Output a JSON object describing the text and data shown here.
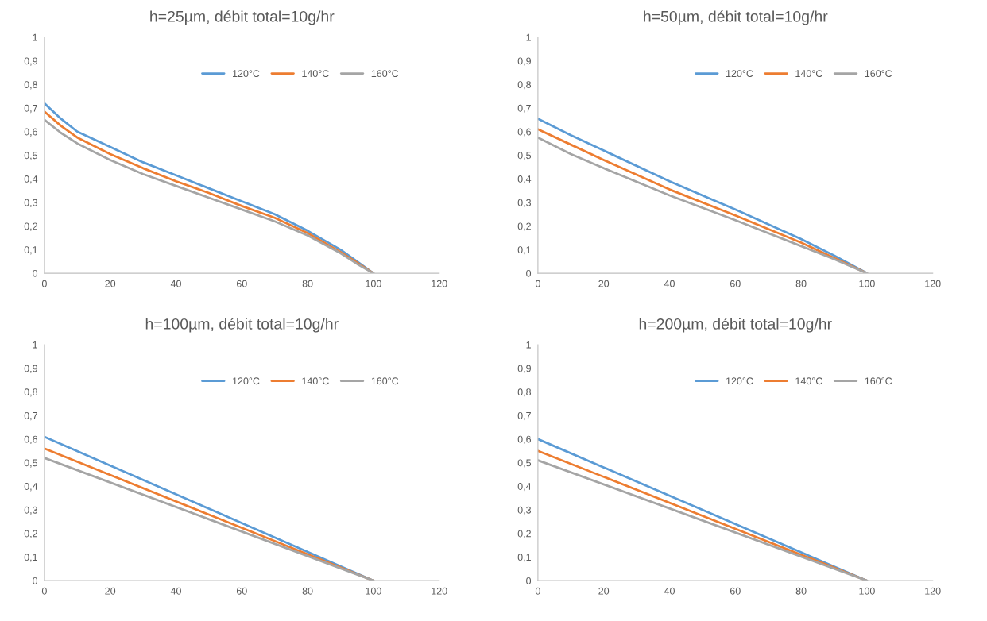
{
  "chart_data": [
    {
      "type": "line",
      "title": "h=25µm, débit total=10g/hr",
      "x": [
        0,
        5,
        10,
        20,
        30,
        40,
        50,
        60,
        70,
        80,
        90,
        95,
        100
      ],
      "xlim": [
        0,
        120
      ],
      "xticks": [
        0,
        20,
        40,
        60,
        80,
        100,
        120
      ],
      "ylim": [
        0,
        1
      ],
      "yticks": [
        0,
        {
          "value": 0.1,
          "label": "0,1"
        },
        {
          "value": 0.2,
          "label": "0,2"
        },
        {
          "value": 0.3,
          "label": "0,3"
        },
        {
          "value": 0.4,
          "label": "0,4"
        },
        {
          "value": 0.5,
          "label": "0,5"
        },
        {
          "value": 0.6,
          "label": "0,6"
        },
        {
          "value": 0.7,
          "label": "0,7"
        },
        {
          "value": 0.8,
          "label": "0,8"
        },
        {
          "value": 0.9,
          "label": "0,9"
        },
        1
      ],
      "grid": false,
      "legend": "top right",
      "marker": "none",
      "line_style": "solid",
      "series": [
        {
          "name": "120°C",
          "color": "#5b9bd5",
          "values": [
            0.72,
            0.655,
            0.6,
            0.535,
            0.47,
            0.415,
            0.36,
            0.305,
            0.25,
            0.18,
            0.1,
            0.05,
            0
          ]
        },
        {
          "name": "140°C",
          "color": "#ed7d31",
          "values": [
            0.685,
            0.625,
            0.575,
            0.505,
            0.445,
            0.39,
            0.34,
            0.285,
            0.235,
            0.17,
            0.09,
            0.045,
            0
          ]
        },
        {
          "name": "160°C",
          "color": "#a5a5a5",
          "values": [
            0.65,
            0.595,
            0.55,
            0.48,
            0.42,
            0.37,
            0.32,
            0.27,
            0.22,
            0.16,
            0.085,
            0.04,
            0
          ]
        }
      ]
    },
    {
      "type": "line",
      "title": "h=50µm, débit total=10g/hr",
      "x": [
        0,
        10,
        20,
        40,
        60,
        80,
        90,
        100
      ],
      "xlim": [
        0,
        120
      ],
      "xticks": [
        0,
        20,
        40,
        60,
        80,
        100,
        120
      ],
      "ylim": [
        0,
        1
      ],
      "yticks": [
        0,
        {
          "value": 0.1,
          "label": "0,1"
        },
        {
          "value": 0.2,
          "label": "0,2"
        },
        {
          "value": 0.3,
          "label": "0,3"
        },
        {
          "value": 0.4,
          "label": "0,4"
        },
        {
          "value": 0.5,
          "label": "0,5"
        },
        {
          "value": 0.6,
          "label": "0,6"
        },
        {
          "value": 0.7,
          "label": "0,7"
        },
        {
          "value": 0.8,
          "label": "0,8"
        },
        {
          "value": 0.9,
          "label": "0,9"
        },
        1
      ],
      "grid": false,
      "legend": "top right",
      "marker": "none",
      "line_style": "solid",
      "series": [
        {
          "name": "120°C",
          "color": "#5b9bd5",
          "values": [
            0.655,
            0.585,
            0.52,
            0.39,
            0.27,
            0.145,
            0.075,
            0
          ]
        },
        {
          "name": "140°C",
          "color": "#ed7d31",
          "values": [
            0.61,
            0.545,
            0.48,
            0.355,
            0.245,
            0.13,
            0.065,
            0
          ]
        },
        {
          "name": "160°C",
          "color": "#a5a5a5",
          "values": [
            0.575,
            0.505,
            0.445,
            0.33,
            0.225,
            0.115,
            0.06,
            0
          ]
        }
      ]
    },
    {
      "type": "line",
      "title": "h=100µm, débit total=10g/hr",
      "x": [
        0,
        50,
        100
      ],
      "xlim": [
        0,
        120
      ],
      "xticks": [
        0,
        20,
        40,
        60,
        80,
        100,
        120
      ],
      "ylim": [
        0,
        1
      ],
      "yticks": [
        0,
        {
          "value": 0.1,
          "label": "0,1"
        },
        {
          "value": 0.2,
          "label": "0,2"
        },
        {
          "value": 0.3,
          "label": "0,3"
        },
        {
          "value": 0.4,
          "label": "0,4"
        },
        {
          "value": 0.5,
          "label": "0,5"
        },
        {
          "value": 0.6,
          "label": "0,6"
        },
        {
          "value": 0.7,
          "label": "0,7"
        },
        {
          "value": 0.8,
          "label": "0,8"
        },
        {
          "value": 0.9,
          "label": "0,9"
        },
        1
      ],
      "grid": false,
      "legend": "top right",
      "marker": "none",
      "line_style": "solid",
      "series": [
        {
          "name": "120°C",
          "color": "#5b9bd5",
          "values": [
            0.61,
            0.305,
            0
          ]
        },
        {
          "name": "140°C",
          "color": "#ed7d31",
          "values": [
            0.56,
            0.28,
            0
          ]
        },
        {
          "name": "160°C",
          "color": "#a5a5a5",
          "values": [
            0.52,
            0.26,
            0
          ]
        }
      ]
    },
    {
      "type": "line",
      "title": "h=200µm, débit total=10g/hr",
      "x": [
        0,
        50,
        100
      ],
      "xlim": [
        0,
        120
      ],
      "xticks": [
        0,
        20,
        40,
        60,
        80,
        100,
        120
      ],
      "ylim": [
        0,
        1
      ],
      "yticks": [
        0,
        {
          "value": 0.1,
          "label": "0,1"
        },
        {
          "value": 0.2,
          "label": "0,2"
        },
        {
          "value": 0.3,
          "label": "0,3"
        },
        {
          "value": 0.4,
          "label": "0,4"
        },
        {
          "value": 0.5,
          "label": "0,5"
        },
        {
          "value": 0.6,
          "label": "0,6"
        },
        {
          "value": 0.7,
          "label": "0,7"
        },
        {
          "value": 0.8,
          "label": "0,8"
        },
        {
          "value": 0.9,
          "label": "0,9"
        },
        1
      ],
      "grid": false,
      "legend": "top right",
      "marker": "none",
      "line_style": "solid",
      "series": [
        {
          "name": "120°C",
          "color": "#5b9bd5",
          "values": [
            0.6,
            0.3,
            0
          ]
        },
        {
          "name": "140°C",
          "color": "#ed7d31",
          "values": [
            0.55,
            0.275,
            0
          ]
        },
        {
          "name": "160°C",
          "color": "#a5a5a5",
          "values": [
            0.51,
            0.255,
            0
          ]
        }
      ]
    }
  ]
}
